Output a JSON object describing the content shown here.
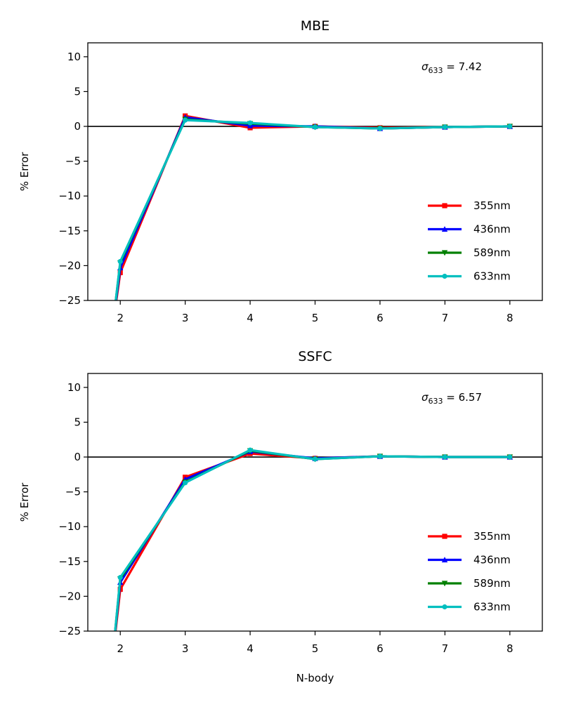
{
  "chart_data": [
    {
      "type": "line",
      "title": "MBE",
      "xlabel": "",
      "ylabel": "% Error",
      "xlim": [
        1.5,
        8.5
      ],
      "ylim": [
        -25,
        12
      ],
      "xticks": [
        2,
        3,
        4,
        5,
        6,
        7,
        8
      ],
      "yticks": [
        10,
        5,
        0,
        -5,
        -10,
        -15,
        -20,
        -25
      ],
      "hline": 0,
      "annotation": {
        "symbol": "σ",
        "subscript": "633",
        "text": " = 7.42"
      },
      "legend_position": "lower-right",
      "x": [
        2,
        3,
        4,
        5,
        6,
        7,
        8
      ],
      "series": [
        {
          "name": "355nm",
          "color": "#ff0000",
          "marker": "square",
          "values": [
            -21.0,
            1.5,
            -0.2,
            0.0,
            -0.2,
            -0.1,
            0.0
          ],
          "lead_in": -29
        },
        {
          "name": "436nm",
          "color": "#0000ff",
          "marker": "triangle-up",
          "values": [
            -20.3,
            1.3,
            0.1,
            0.0,
            -0.3,
            -0.1,
            0.0
          ],
          "lead_in": -29
        },
        {
          "name": "589nm",
          "color": "#008000",
          "marker": "triangle-down",
          "values": [
            -19.6,
            1.0,
            0.4,
            -0.1,
            -0.3,
            -0.1,
            0.0
          ],
          "lead_in": -29
        },
        {
          "name": "633nm",
          "color": "#00bfbf",
          "marker": "circle",
          "values": [
            -19.4,
            0.9,
            0.5,
            -0.1,
            -0.3,
            -0.1,
            0.0
          ],
          "lead_in": -29
        }
      ]
    },
    {
      "type": "line",
      "title": "SSFC",
      "xlabel": "N-body",
      "ylabel": "% Error",
      "xlim": [
        1.5,
        8.5
      ],
      "ylim": [
        -25,
        12
      ],
      "xticks": [
        2,
        3,
        4,
        5,
        6,
        7,
        8
      ],
      "yticks": [
        10,
        5,
        0,
        -5,
        -10,
        -15,
        -20,
        -25
      ],
      "hline": 0,
      "annotation": {
        "symbol": "σ",
        "subscript": "633",
        "text": " = 6.57"
      },
      "legend_position": "lower-right",
      "x": [
        2,
        3,
        4,
        5,
        6,
        7,
        8
      ],
      "series": [
        {
          "name": "355nm",
          "color": "#ff0000",
          "marker": "square",
          "values": [
            -19.0,
            -2.9,
            0.5,
            -0.2,
            0.1,
            0.0,
            0.0
          ],
          "lead_in": -29
        },
        {
          "name": "436nm",
          "color": "#0000ff",
          "marker": "triangle-up",
          "values": [
            -18.0,
            -3.2,
            0.8,
            -0.2,
            0.1,
            0.0,
            0.0
          ],
          "lead_in": -29
        },
        {
          "name": "589nm",
          "color": "#008000",
          "marker": "triangle-down",
          "values": [
            -17.5,
            -3.6,
            0.9,
            -0.3,
            0.1,
            0.0,
            0.0
          ],
          "lead_in": -29
        },
        {
          "name": "633nm",
          "color": "#00bfbf",
          "marker": "circle",
          "values": [
            -17.3,
            -3.7,
            1.0,
            -0.3,
            0.1,
            0.0,
            0.0
          ],
          "lead_in": -29
        }
      ]
    }
  ]
}
